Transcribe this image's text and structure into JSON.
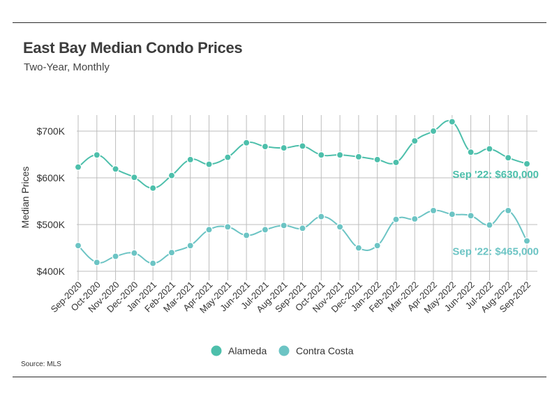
{
  "header": {
    "title": "East Bay Median Condo Prices",
    "subtitle": "Two-Year, Monthly"
  },
  "footer": {
    "source": "Source:  MLS"
  },
  "colors": {
    "alameda": "#4dbfab",
    "contra_costa": "#6cc4c4",
    "grid": "#bdbdbd",
    "rule": "#2b2b2b"
  },
  "chart_data": {
    "type": "line",
    "title": "East Bay Median Condo Prices",
    "subtitle": "Two-Year, Monthly",
    "xlabel": "",
    "ylabel": "Median Prices",
    "ylim": [
      370000,
      740000
    ],
    "yticks": [
      400000,
      500000,
      600000,
      700000
    ],
    "ytick_labels": [
      "$400K",
      "$500K",
      "$600K",
      "$700K"
    ],
    "grid": true,
    "legend": "bottom-center",
    "categories": [
      "Sep-2020",
      "Oct-2020",
      "Nov-2020",
      "Dec-2020",
      "Jan-2021",
      "Feb-2021",
      "Mar-2021",
      "Apr-2021",
      "May-2021",
      "Jun-2021",
      "Jul-2021",
      "Aug-2021",
      "Sep-2021",
      "Oct-2021",
      "Nov-2021",
      "Dec-2021",
      "Jan-2022",
      "Feb-2022",
      "Mar-2022",
      "Apr-2022",
      "May-2022",
      "Jun-2022",
      "Jul-2022",
      "Aug-2022",
      "Sep-2022"
    ],
    "series": [
      {
        "name": "Alameda",
        "color": "#4dbfab",
        "values": [
          623000,
          649000,
          619000,
          601000,
          578000,
          605000,
          639000,
          629000,
          644000,
          675000,
          667000,
          664000,
          668000,
          649000,
          649000,
          645000,
          639000,
          633000,
          679000,
          700000,
          720000,
          655000,
          662000,
          643000,
          630000
        ]
      },
      {
        "name": "Contra Costa",
        "color": "#6cc4c4",
        "values": [
          455000,
          419000,
          432000,
          439000,
          417000,
          440000,
          455000,
          489000,
          495000,
          477000,
          489000,
          498000,
          492000,
          517000,
          495000,
          450000,
          455000,
          511000,
          512000,
          530000,
          522000,
          519000,
          499000,
          530000,
          465000
        ]
      }
    ],
    "annotations": [
      {
        "series": "Alameda",
        "text": "Sep '22: $630,000"
      },
      {
        "series": "Contra Costa",
        "text": "Sep '22: $465,000"
      }
    ]
  }
}
